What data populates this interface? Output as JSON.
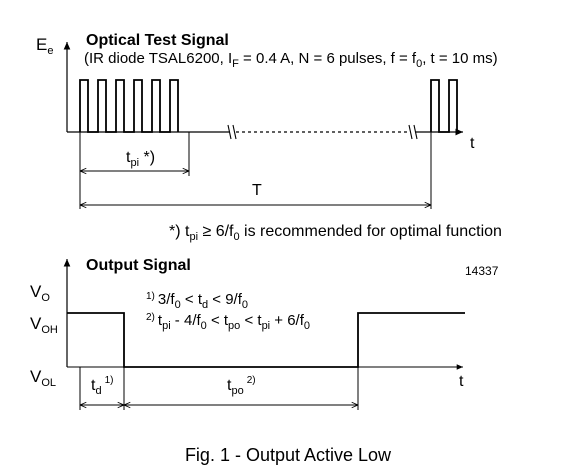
{
  "top": {
    "axis_label": "E",
    "axis_label_sub": "e",
    "title": "Optical Test Signal",
    "subtitle_parts": [
      "(IR diode TSAL6200, I",
      "F",
      " = 0.4 A, N = 6 pulses, f = f",
      "0",
      ", t = 10 ms)"
    ],
    "t_axis": "t",
    "tpi_label": "t",
    "tpi_sub": "pi",
    "tpi_mark": " *)",
    "period_label": "T",
    "footnote_parts": [
      "*) t",
      "pi",
      " ≥ 6/f",
      "0",
      " is recommended for optimal function"
    ]
  },
  "bottom": {
    "title": "Output Signal",
    "figure_number": "14337",
    "vo_label": "V",
    "vo_sub": "O",
    "voh_label": "V",
    "voh_sub": "OH",
    "vol_label": "V",
    "vol_sub": "OL",
    "t_axis": "t",
    "note1_marker": "1)",
    "note1_parts": [
      "3/f",
      "0",
      " < t",
      "d",
      " < 9/f",
      "0"
    ],
    "note2_marker": "2)",
    "note2_parts": [
      "t",
      "pi",
      " - 4/f",
      "0",
      " < t",
      "po",
      " < t",
      "pi",
      " + 6/f",
      "0"
    ],
    "td_label": "t",
    "td_sub": "d",
    "td_sup": "1)",
    "tpo_label": "t",
    "tpo_sub": "po",
    "tpo_sup": "2)"
  },
  "caption": "Fig. 1 - Output Active Low"
}
